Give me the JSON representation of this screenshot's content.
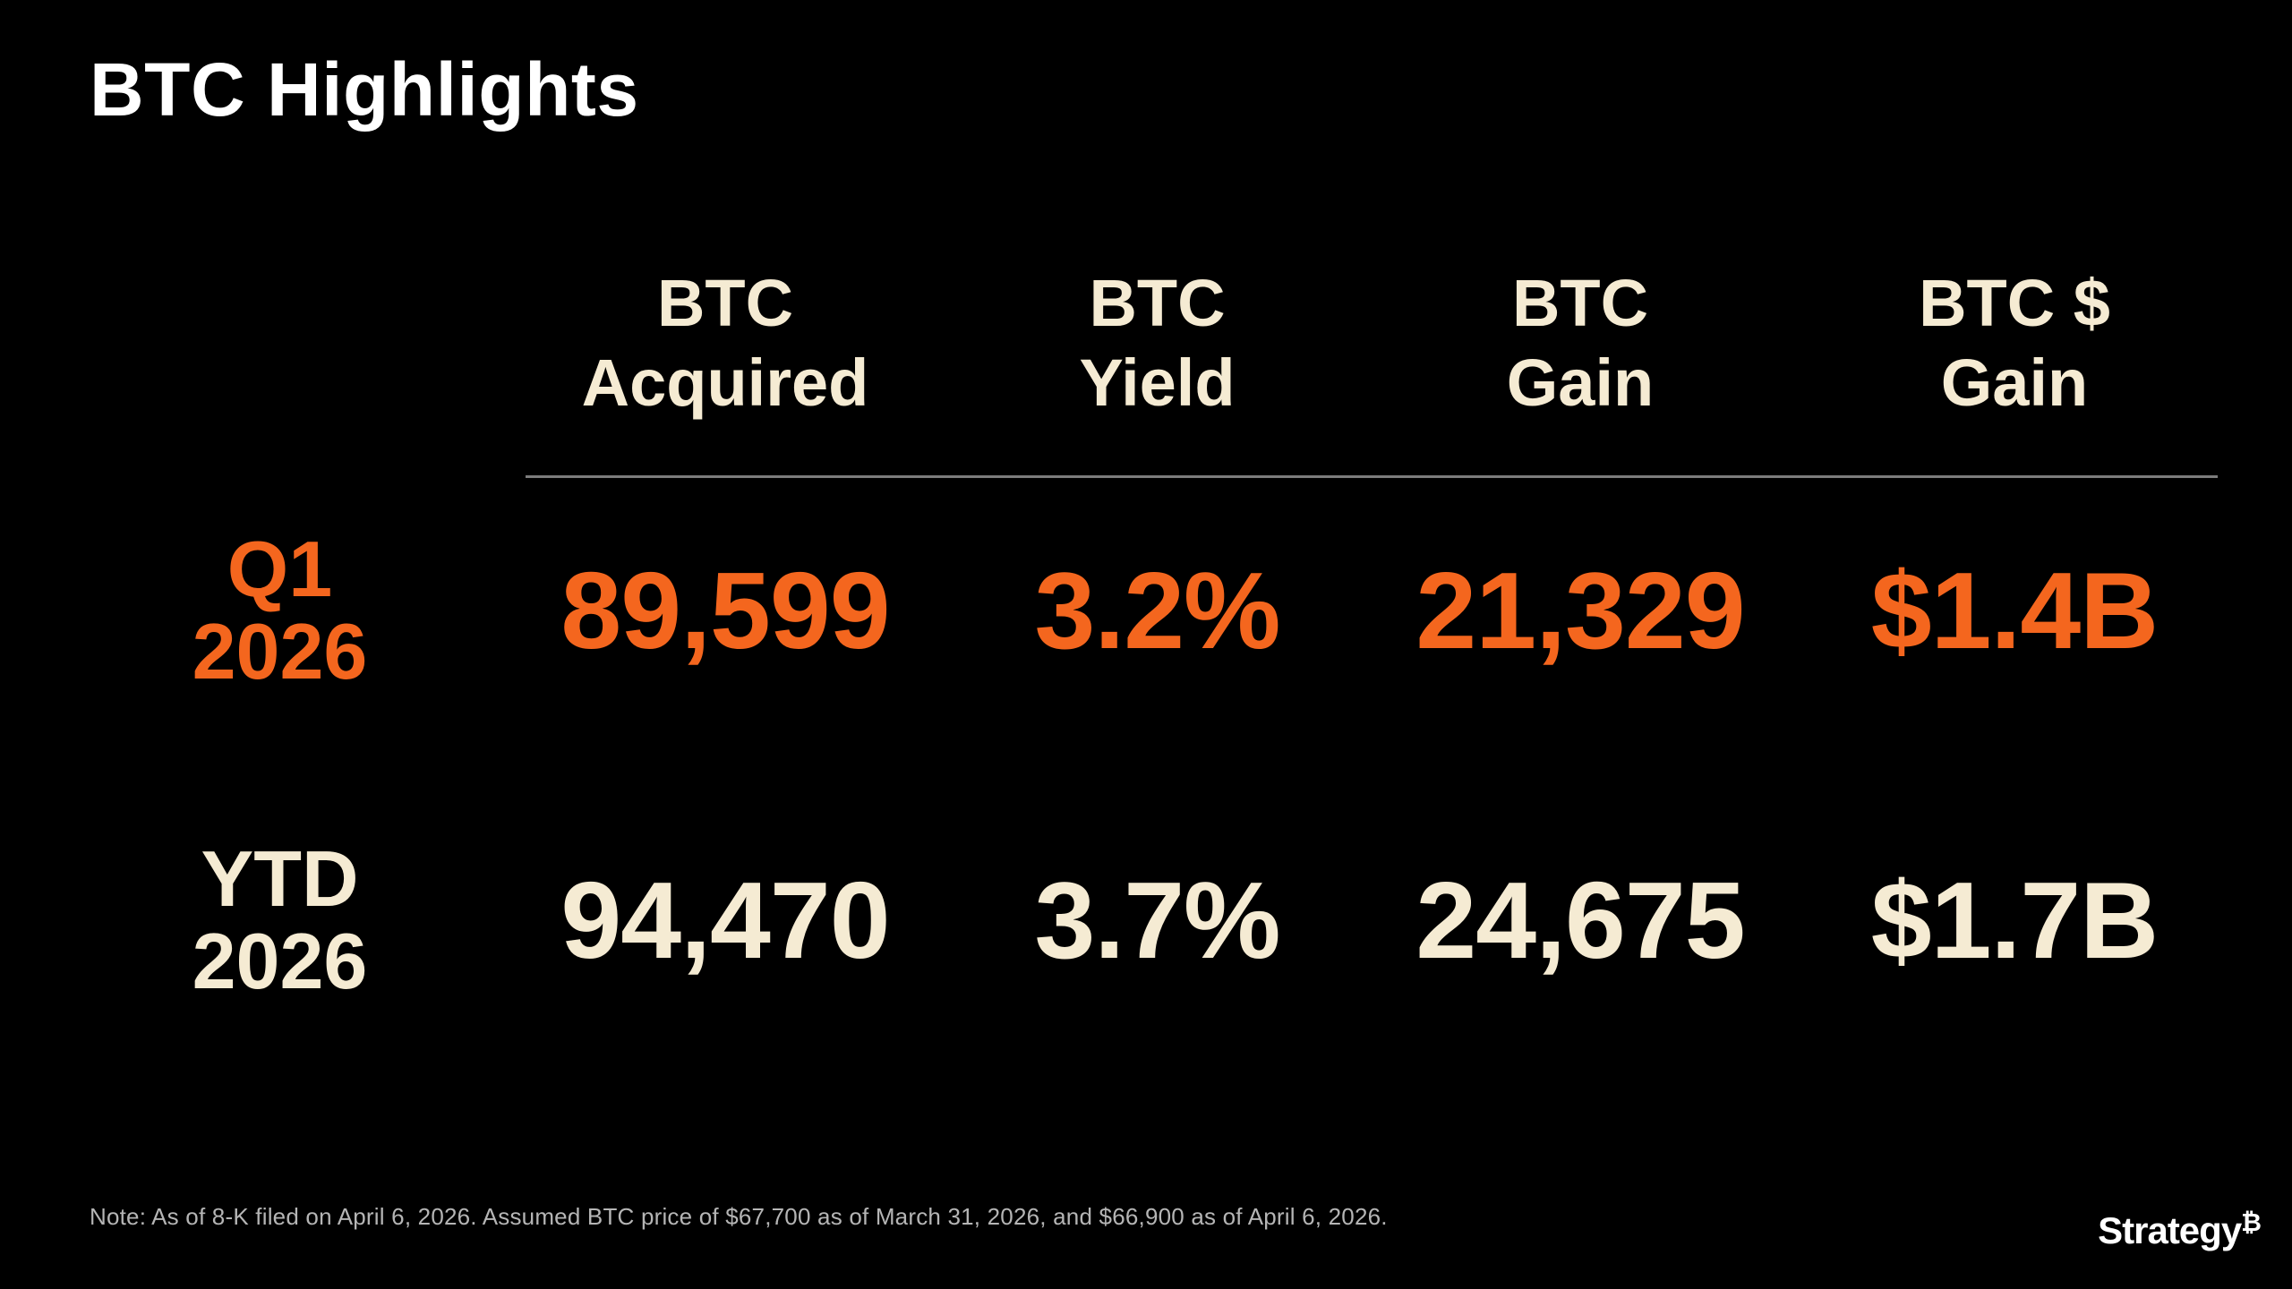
{
  "slide": {
    "title": "BTC Highlights",
    "note": "Note: As of 8-K filed on April 6, 2026. Assumed BTC price of $67,700 as of March 31, 2026, and $66,900 as of April 6, 2026.",
    "logo": {
      "text": "Strategy",
      "symbol": "₿"
    },
    "colors": {
      "background": "#000000",
      "title": "#FFFFFF",
      "cream": "#F5EBD3",
      "orange": "#F4661E",
      "note": "#B5B5B5",
      "divider": "#7C7C7C"
    }
  },
  "table": {
    "column_headers": [
      {
        "line1": "BTC",
        "line2": "Acquired"
      },
      {
        "line1": "BTC",
        "line2": "Yield"
      },
      {
        "line1": "BTC",
        "line2": "Gain"
      },
      {
        "line1": "BTC $",
        "line2": "Gain"
      }
    ],
    "rows": [
      {
        "label_line1": "Q1",
        "label_line2": "2026",
        "btc_acquired": "89,599",
        "btc_yield": "3.2%",
        "btc_gain": "21,329",
        "btc_dollar_gain": "$1.4B"
      },
      {
        "label_line1": "YTD",
        "label_line2": "2026",
        "btc_acquired": "94,470",
        "btc_yield": "3.7%",
        "btc_gain": "24,675",
        "btc_dollar_gain": "$1.7B"
      }
    ]
  }
}
